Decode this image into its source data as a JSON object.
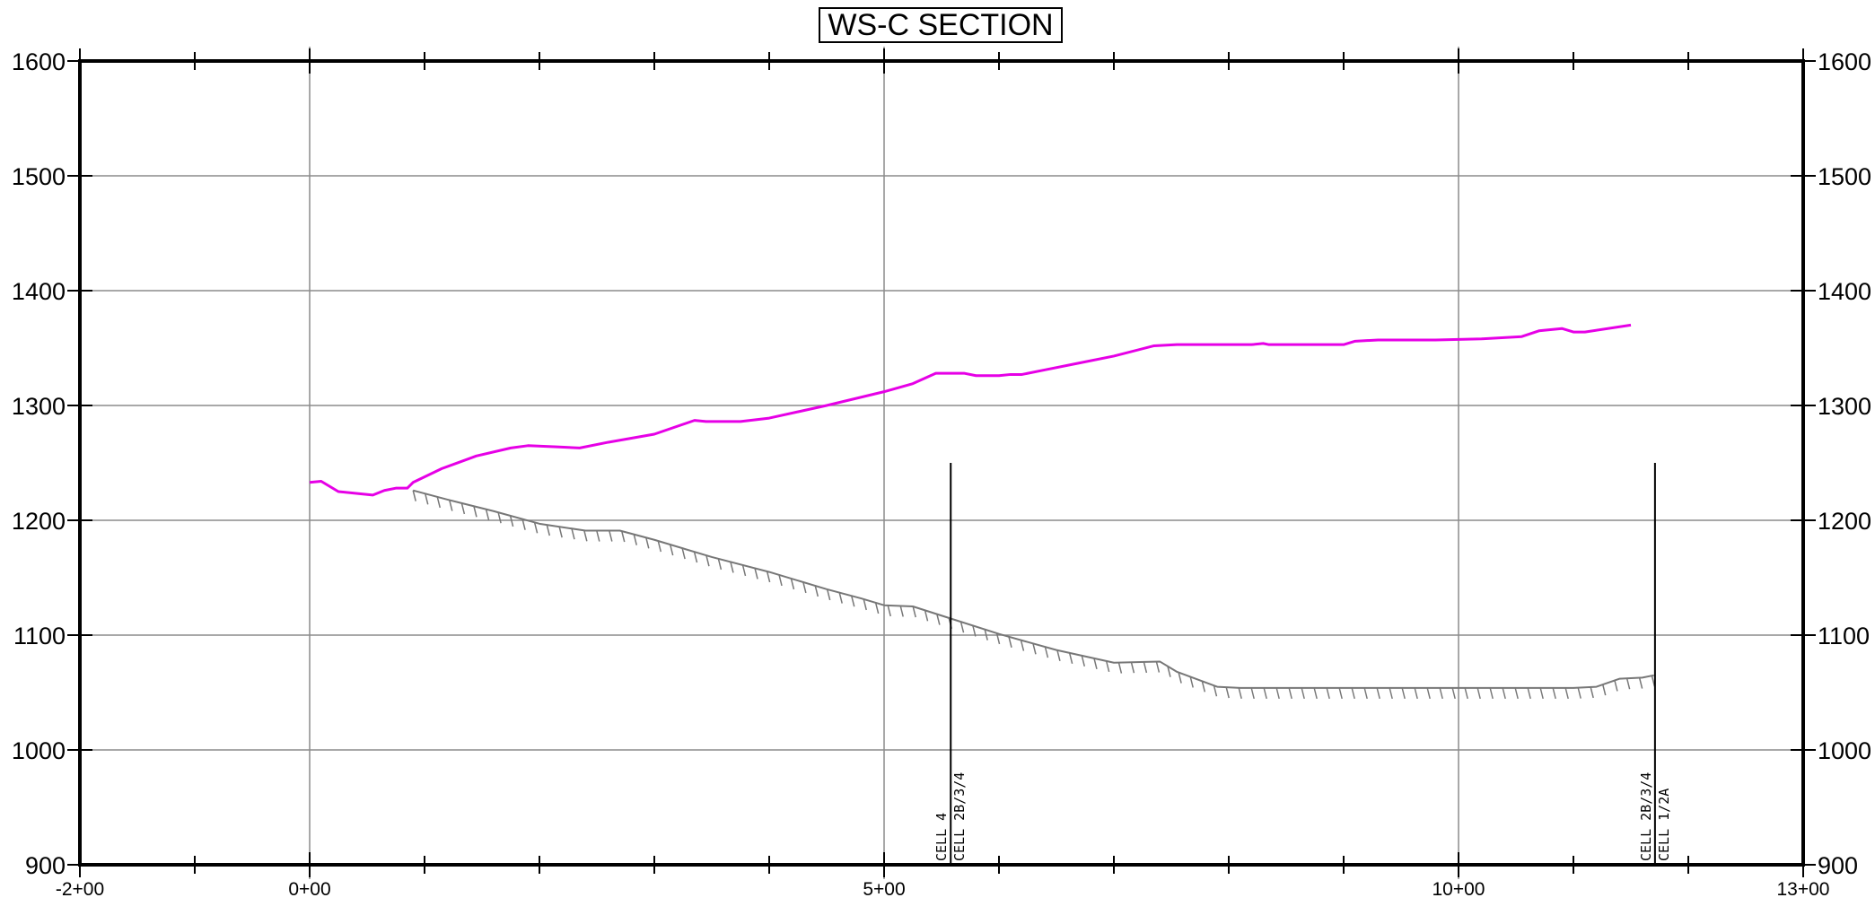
{
  "chart_data": {
    "type": "line",
    "title": "WS-C SECTION",
    "xlabel": "",
    "ylabel": "",
    "xlim": [
      -200,
      1300
    ],
    "ylim": [
      900,
      1600
    ],
    "grid": true,
    "x_ticks": [
      -200,
      0,
      500,
      1000,
      1300
    ],
    "x_tick_labels": [
      "-2+00",
      "0+00",
      "5+00",
      "10+00",
      "13+00"
    ],
    "x_minor_ticks": [
      -100,
      100,
      200,
      300,
      400,
      600,
      700,
      800,
      900,
      1100,
      1200
    ],
    "y_ticks": [
      900,
      1000,
      1100,
      1200,
      1300,
      1400,
      1500,
      1600
    ],
    "y_tick_labels": [
      "900",
      "1000",
      "1100",
      "1200",
      "1300",
      "1400",
      "1500",
      "1600"
    ],
    "series": [
      {
        "color": "#e600e6",
        "style": "line",
        "x": [
          0,
          10,
          25,
          55,
          65,
          75,
          85,
          90,
          115,
          145,
          175,
          190,
          215,
          235,
          260,
          300,
          335,
          345,
          375,
          400,
          450,
          500,
          525,
          545,
          570,
          580,
          600,
          610,
          620,
          640,
          670,
          700,
          735,
          755,
          800,
          820,
          830,
          835,
          845,
          855,
          870,
          900,
          910,
          930,
          980,
          1020,
          1055,
          1070,
          1090,
          1100,
          1110,
          1150
        ],
        "y": [
          1233,
          1234,
          1225,
          1222,
          1226,
          1228,
          1228,
          1233,
          1245,
          1256,
          1263,
          1265,
          1264,
          1263,
          1268,
          1275,
          1287,
          1286,
          1286,
          1289,
          1300,
          1312,
          1319,
          1328,
          1328,
          1326,
          1326,
          1327,
          1327,
          1331,
          1337,
          1343,
          1352,
          1353,
          1353,
          1353,
          1354,
          1353,
          1353,
          1353,
          1353,
          1353,
          1356,
          1357,
          1357,
          1358,
          1360,
          1365,
          1367,
          1364,
          1364,
          1370
        ]
      },
      {
        "color": "#777777",
        "style": "hatched",
        "x": [
          90,
          120,
          160,
          200,
          240,
          270,
          300,
          350,
          400,
          450,
          480,
          500,
          525,
          550,
          600,
          650,
          700,
          740,
          755,
          790,
          810,
          830,
          850,
          900,
          950,
          1000,
          1050,
          1100,
          1120,
          1140,
          1160,
          1170
        ],
        "y": [
          1226,
          1218,
          1208,
          1197,
          1191,
          1191,
          1183,
          1168,
          1155,
          1140,
          1132,
          1126,
          1125,
          1117,
          1101,
          1087,
          1076,
          1077,
          1068,
          1055,
          1054,
          1054,
          1054,
          1054,
          1054,
          1054,
          1054,
          1054,
          1055,
          1062,
          1063,
          1065
        ]
      }
    ],
    "annotations": [
      {
        "x": 558,
        "y_top": 1250,
        "label_left": "CELL 4",
        "label_right": "CELL 2B/3/4"
      },
      {
        "x": 1171,
        "y_top": 1250,
        "label_left": "CELL 2B/3/4",
        "label_right": "CELL 1/2A"
      }
    ]
  }
}
